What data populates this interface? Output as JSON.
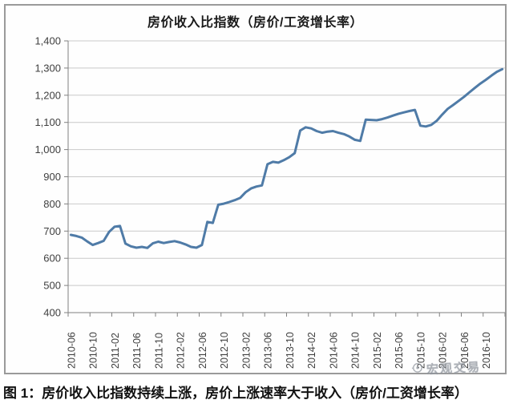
{
  "figure": {
    "caption_label": "图 1：",
    "caption_text": "房价收入比指数持续上涨，房价上涨速率大于收入（房价/工资增长率）",
    "watermark": {
      "text": "宏观交易",
      "color": "#8d939b"
    }
  },
  "chart_data": {
    "type": "line",
    "title": "房价收入比指数（房价/工资增长率）",
    "xlabel": "",
    "ylabel": "",
    "ylim": [
      400,
      1400
    ],
    "y_tick_step": 100,
    "y_tick_labels_top_to_bottom": [
      "1,400",
      "1,300",
      "1,200",
      "1,100",
      "1,000",
      "900",
      "800",
      "700",
      "600",
      "500",
      "400"
    ],
    "grid": true,
    "legend": "none",
    "x_start": "2010-06",
    "x_frequency": "monthly",
    "x_tick_interval_months": 4,
    "x_tick_labels": [
      "2010-06",
      "2010-10",
      "2011-02",
      "2011-06",
      "2011-10",
      "2012-02",
      "2012-06",
      "2012-10",
      "2013-02",
      "2013-06",
      "2013-10",
      "2014-02",
      "2014-06",
      "2014-10",
      "2015-02",
      "2015-06",
      "2015-10",
      "2016-02",
      "2016-06",
      "2016-10"
    ],
    "series": [
      {
        "name": "房价收入比指数",
        "color": "#4f7ba7",
        "values": [
          686,
          682,
          676,
          662,
          649,
          656,
          664,
          697,
          716,
          719,
          654,
          644,
          639,
          642,
          638,
          655,
          661,
          656,
          660,
          663,
          658,
          651,
          642,
          639,
          649,
          734,
          730,
          797,
          801,
          807,
          814,
          822,
          843,
          857,
          864,
          868,
          946,
          955,
          952,
          961,
          972,
          987,
          1070,
          1082,
          1078,
          1068,
          1062,
          1066,
          1068,
          1062,
          1057,
          1048,
          1036,
          1032,
          1110,
          1109,
          1108,
          1112,
          1118,
          1125,
          1132,
          1137,
          1142,
          1146,
          1088,
          1085,
          1091,
          1106,
          1129,
          1150,
          1164,
          1179,
          1194,
          1211,
          1227,
          1243,
          1257,
          1272,
          1286,
          1296
        ]
      }
    ],
    "colors": {
      "gridline": "#c9c9c9",
      "axis": "#808080",
      "tick_label": "#3f3f3f"
    }
  }
}
